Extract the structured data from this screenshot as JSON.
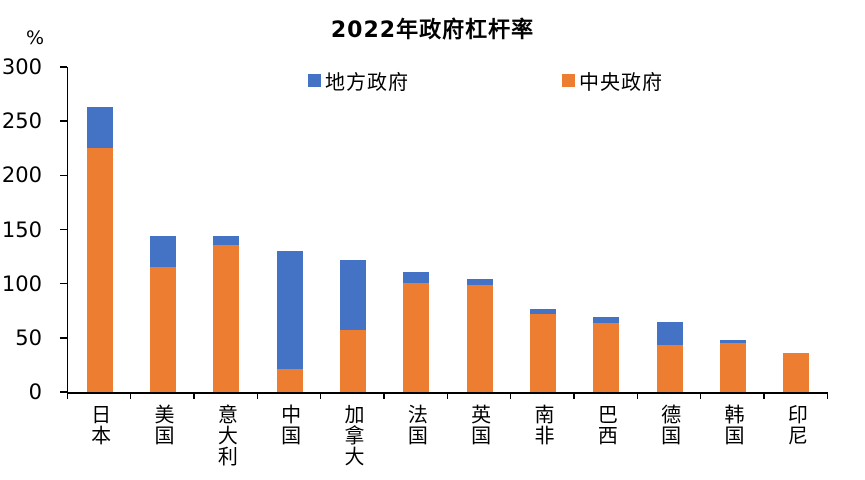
{
  "title": "2022年政府杠杆率",
  "y_axis": {
    "unit": "%"
  },
  "legend": {
    "local": "地方政府",
    "central": "中央政府"
  },
  "colors": {
    "local": "#4472C4",
    "central": "#ED7D31",
    "axis": "#000000"
  },
  "chart_data": {
    "type": "bar",
    "stacked": true,
    "title": "2022年政府杠杆率",
    "ylabel": "%",
    "ylim": [
      0,
      300
    ],
    "yticks": [
      0,
      50,
      100,
      150,
      200,
      250,
      300
    ],
    "grid": false,
    "legend_position": "top-inside",
    "categories": [
      "日本",
      "美国",
      "意大利",
      "中国",
      "加拿大",
      "法国",
      "英国",
      "南非",
      "巴西",
      "德国",
      "韩国",
      "印尼"
    ],
    "series": [
      {
        "name": "中央政府",
        "color": "#ED7D31",
        "values": [
          225,
          115,
          136,
          21,
          57,
          101,
          99,
          72,
          64,
          43,
          45,
          36
        ]
      },
      {
        "name": "地方政府",
        "color": "#4472C4",
        "values": [
          38,
          29,
          8,
          109,
          65,
          10,
          5,
          5,
          5,
          22,
          3,
          0
        ]
      }
    ]
  }
}
